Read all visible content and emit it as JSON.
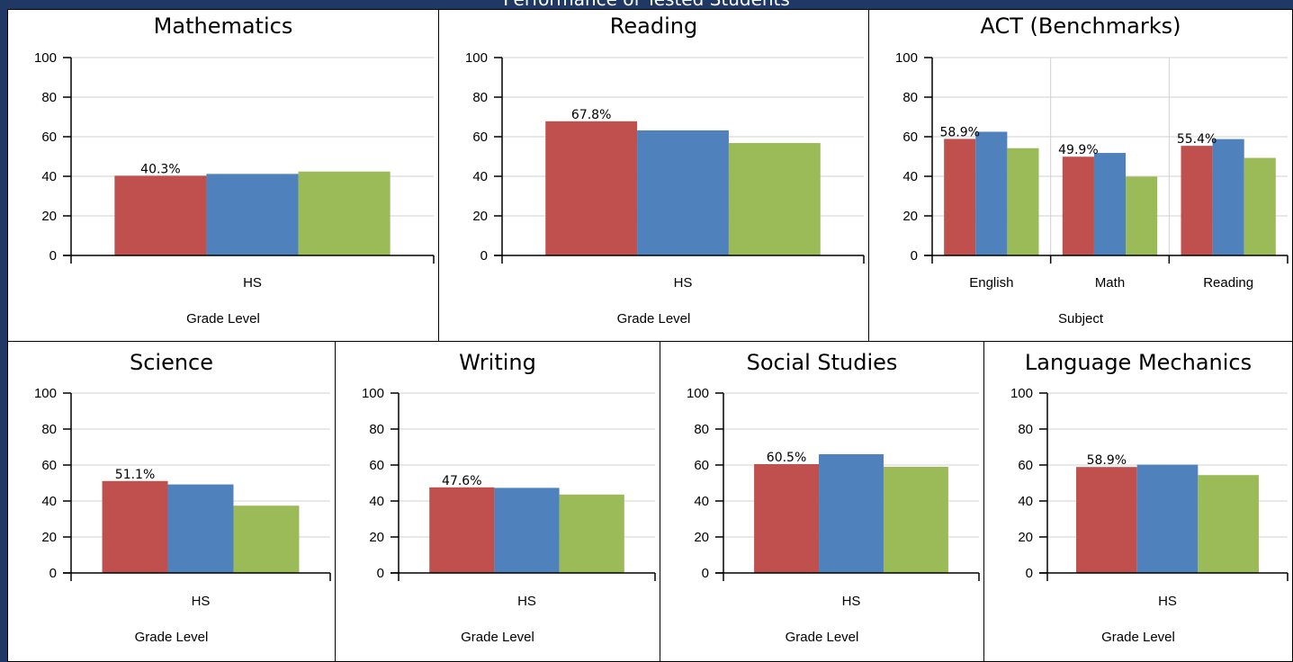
{
  "dashboard": {
    "title": "Performance of Tested Students"
  },
  "colors": {
    "series1": "#c0504d",
    "series2": "#4f81bd",
    "series3": "#9bbb59",
    "background": "#1f3864"
  },
  "chart_data": [
    {
      "type": "bar",
      "title": "Mathematics",
      "categories": [
        "HS"
      ],
      "series": [
        {
          "values": [
            40.3
          ]
        },
        {
          "values": [
            41.2
          ]
        },
        {
          "values": [
            42.4
          ]
        }
      ],
      "data_labels": [
        "40.3%"
      ],
      "xlabel": "Grade Level",
      "ylim": [
        0,
        100
      ],
      "yticks": [
        "0",
        "20",
        "40",
        "60",
        "80",
        "100"
      ],
      "grid": true
    },
    {
      "type": "bar",
      "title": "Reading",
      "categories": [
        "HS"
      ],
      "series": [
        {
          "values": [
            67.8
          ]
        },
        {
          "values": [
            63.2
          ]
        },
        {
          "values": [
            56.8
          ]
        }
      ],
      "data_labels": [
        "67.8%"
      ],
      "xlabel": "Grade Level",
      "ylim": [
        0,
        100
      ],
      "yticks": [
        "0",
        "20",
        "40",
        "60",
        "80",
        "100"
      ],
      "grid": true
    },
    {
      "type": "bar",
      "title": "ACT (Benchmarks)",
      "categories": [
        "English",
        "Math",
        "Reading"
      ],
      "series": [
        {
          "values": [
            58.9,
            49.9,
            55.4
          ]
        },
        {
          "values": [
            62.5,
            51.8,
            58.8
          ]
        },
        {
          "values": [
            54.2,
            39.8,
            49.3
          ]
        }
      ],
      "data_labels": [
        "58.9%",
        "49.9%",
        "55.4%"
      ],
      "xlabel": "Subject",
      "ylim": [
        0,
        100
      ],
      "yticks": [
        "0",
        "20",
        "40",
        "60",
        "80",
        "100"
      ],
      "grid": true
    },
    {
      "type": "bar",
      "title": "Science",
      "categories": [
        "HS"
      ],
      "series": [
        {
          "values": [
            51.1
          ]
        },
        {
          "values": [
            49.2
          ]
        },
        {
          "values": [
            37.4
          ]
        }
      ],
      "data_labels": [
        "51.1%"
      ],
      "xlabel": "Grade Level",
      "ylim": [
        0,
        100
      ],
      "yticks": [
        "0",
        "20",
        "40",
        "60",
        "80",
        "100"
      ],
      "grid": true
    },
    {
      "type": "bar",
      "title": "Writing",
      "categories": [
        "HS"
      ],
      "series": [
        {
          "values": [
            47.6
          ]
        },
        {
          "values": [
            47.3
          ]
        },
        {
          "values": [
            43.6
          ]
        }
      ],
      "data_labels": [
        "47.6%"
      ],
      "xlabel": "Grade Level",
      "ylim": [
        0,
        100
      ],
      "yticks": [
        "0",
        "20",
        "40",
        "60",
        "80",
        "100"
      ],
      "grid": true
    },
    {
      "type": "bar",
      "title": "Social Studies",
      "categories": [
        "HS"
      ],
      "series": [
        {
          "values": [
            60.5
          ]
        },
        {
          "values": [
            66.0
          ]
        },
        {
          "values": [
            59.0
          ]
        }
      ],
      "data_labels": [
        "60.5%"
      ],
      "xlabel": "Grade Level",
      "ylim": [
        0,
        100
      ],
      "yticks": [
        "0",
        "20",
        "40",
        "60",
        "80",
        "100"
      ],
      "grid": true
    },
    {
      "type": "bar",
      "title": "Language Mechanics",
      "categories": [
        "HS"
      ],
      "series": [
        {
          "values": [
            58.9
          ]
        },
        {
          "values": [
            60.2
          ]
        },
        {
          "values": [
            54.4
          ]
        }
      ],
      "data_labels": [
        "58.9%"
      ],
      "xlabel": "Grade Level",
      "ylim": [
        0,
        100
      ],
      "yticks": [
        "0",
        "20",
        "40",
        "60",
        "80",
        "100"
      ],
      "grid": true
    }
  ]
}
